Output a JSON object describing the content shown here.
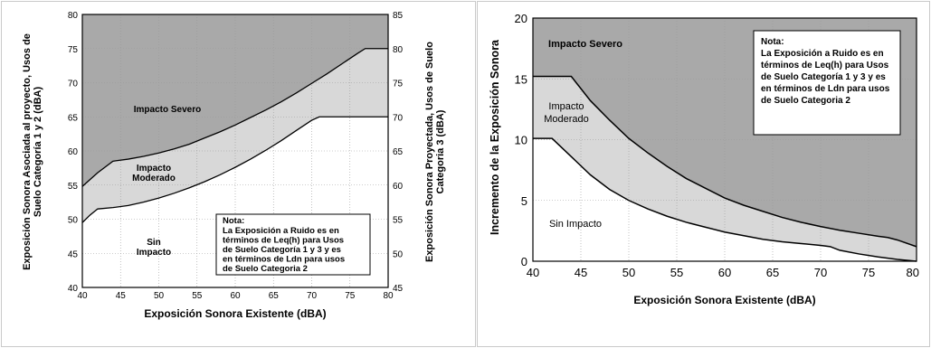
{
  "colors": {
    "severe_zone": "#a9a9a9",
    "moderate_zone": "#d8d8d8",
    "none_zone": "#ffffff",
    "boundary_line": "#000000",
    "grid_line": "#9a9a9a"
  },
  "chart_data": [
    {
      "type": "area",
      "xlabel": "Exposición Sonora Existente (dBA)",
      "ylabel": "Exposición Sonora Asociada al proyecto, Usos de Suelo Categoría 1 y 2 (dBA)",
      "y2label": "Exposición Sonora Proyectada, Usos de Suelo Categoria 3 (dBA)",
      "xlim": [
        40,
        80
      ],
      "ylim": [
        40,
        80
      ],
      "y2lim": [
        45,
        85
      ],
      "xticks": [
        "40",
        "45",
        "50",
        "55",
        "60",
        "65",
        "70",
        "75",
        "80"
      ],
      "yticks": [
        "40",
        "45",
        "50",
        "55",
        "60",
        "65",
        "70",
        "75",
        "80"
      ],
      "y2ticks": [
        "45",
        "50",
        "55",
        "60",
        "65",
        "70",
        "75",
        "80",
        "85"
      ],
      "grid": true,
      "zones": {
        "severe": "Impacto Severo",
        "moderate": "Impacto Moderado",
        "moderate_line1": "Impacto",
        "moderate_line2": "Moderado",
        "none_line1": "Sin",
        "none_line2": "Impacto"
      },
      "series": [
        {
          "name": "Impacto Severo",
          "x": [
            40,
            42,
            44,
            46,
            48,
            50,
            52,
            54,
            56,
            58,
            60,
            62,
            64,
            66,
            68,
            70,
            72,
            74,
            76,
            77,
            80
          ],
          "y": [
            54.8,
            56.8,
            58.5,
            58.8,
            59.2,
            59.7,
            60.3,
            61.0,
            61.9,
            62.8,
            63.8,
            64.9,
            66.0,
            67.2,
            68.5,
            69.9,
            71.3,
            72.8,
            74.3,
            75.0,
            75.0
          ]
        },
        {
          "name": "Impacto Moderado",
          "x": [
            40,
            41,
            42,
            44,
            46,
            48,
            50,
            52,
            54,
            56,
            58,
            60,
            62,
            64,
            66,
            68,
            70,
            71,
            72,
            80
          ],
          "y": [
            49.5,
            50.6,
            51.5,
            51.7,
            52.0,
            52.5,
            53.1,
            53.8,
            54.6,
            55.5,
            56.5,
            57.6,
            58.8,
            60.1,
            61.5,
            63.0,
            64.5,
            65.0,
            65.0,
            65.0
          ]
        }
      ],
      "note": {
        "title": "Nota:",
        "lines": [
          "La Exposición a Ruido es en",
          "términos de Leq(h) para Usos",
          "de Suelo Categoría 1 y 3 y es",
          "en términos de Ldn para usos",
          "de Suelo Categoria 2"
        ]
      }
    },
    {
      "type": "area",
      "xlabel": "Exposición Sonora Existente (dBA)",
      "ylabel": "Incremento de la Exposición Sonora",
      "xlim": [
        40,
        80
      ],
      "ylim": [
        0,
        20
      ],
      "xticks": [
        "40",
        "45",
        "50",
        "55",
        "60",
        "65",
        "70",
        "75",
        "80"
      ],
      "yticks": [
        "0",
        "5",
        "10",
        "15",
        "20"
      ],
      "grid": true,
      "zones": {
        "severe": "Impacto Severo",
        "moderate": "Impacto Moderado",
        "moderate_line1": "Impacto",
        "moderate_line2": "Moderado",
        "none": "Sin Impacto"
      },
      "series": [
        {
          "name": "Impacto Severo",
          "x": [
            40,
            44,
            46,
            48,
            50,
            52,
            54,
            56,
            58,
            60,
            62,
            64,
            66,
            68,
            70,
            72,
            74,
            76,
            77,
            78,
            80
          ],
          "y": [
            15.2,
            15.2,
            13.2,
            11.6,
            10.1,
            8.9,
            7.8,
            6.8,
            6.0,
            5.2,
            4.6,
            4.1,
            3.6,
            3.2,
            2.85,
            2.55,
            2.3,
            2.05,
            1.95,
            1.75,
            1.2
          ]
        },
        {
          "name": "Sin Impacto",
          "x": [
            40,
            42,
            44,
            46,
            48,
            50,
            52,
            54,
            56,
            58,
            60,
            62,
            64,
            66,
            68,
            70,
            71,
            72,
            74,
            76,
            78,
            80
          ],
          "y": [
            10.1,
            10.1,
            8.6,
            7.1,
            5.9,
            5.0,
            4.3,
            3.7,
            3.2,
            2.8,
            2.4,
            2.1,
            1.8,
            1.6,
            1.45,
            1.3,
            1.2,
            0.9,
            0.6,
            0.35,
            0.15,
            0.0
          ]
        }
      ],
      "note": {
        "title": "Nota:",
        "lines": [
          "La Exposición a Ruido es en",
          "términos de Leq(h) para Usos",
          "de Suelo Categoría 1 y 3 y es",
          "en términos de Ldn para usos",
          "de Suelo Categoria 2"
        ]
      }
    }
  ]
}
